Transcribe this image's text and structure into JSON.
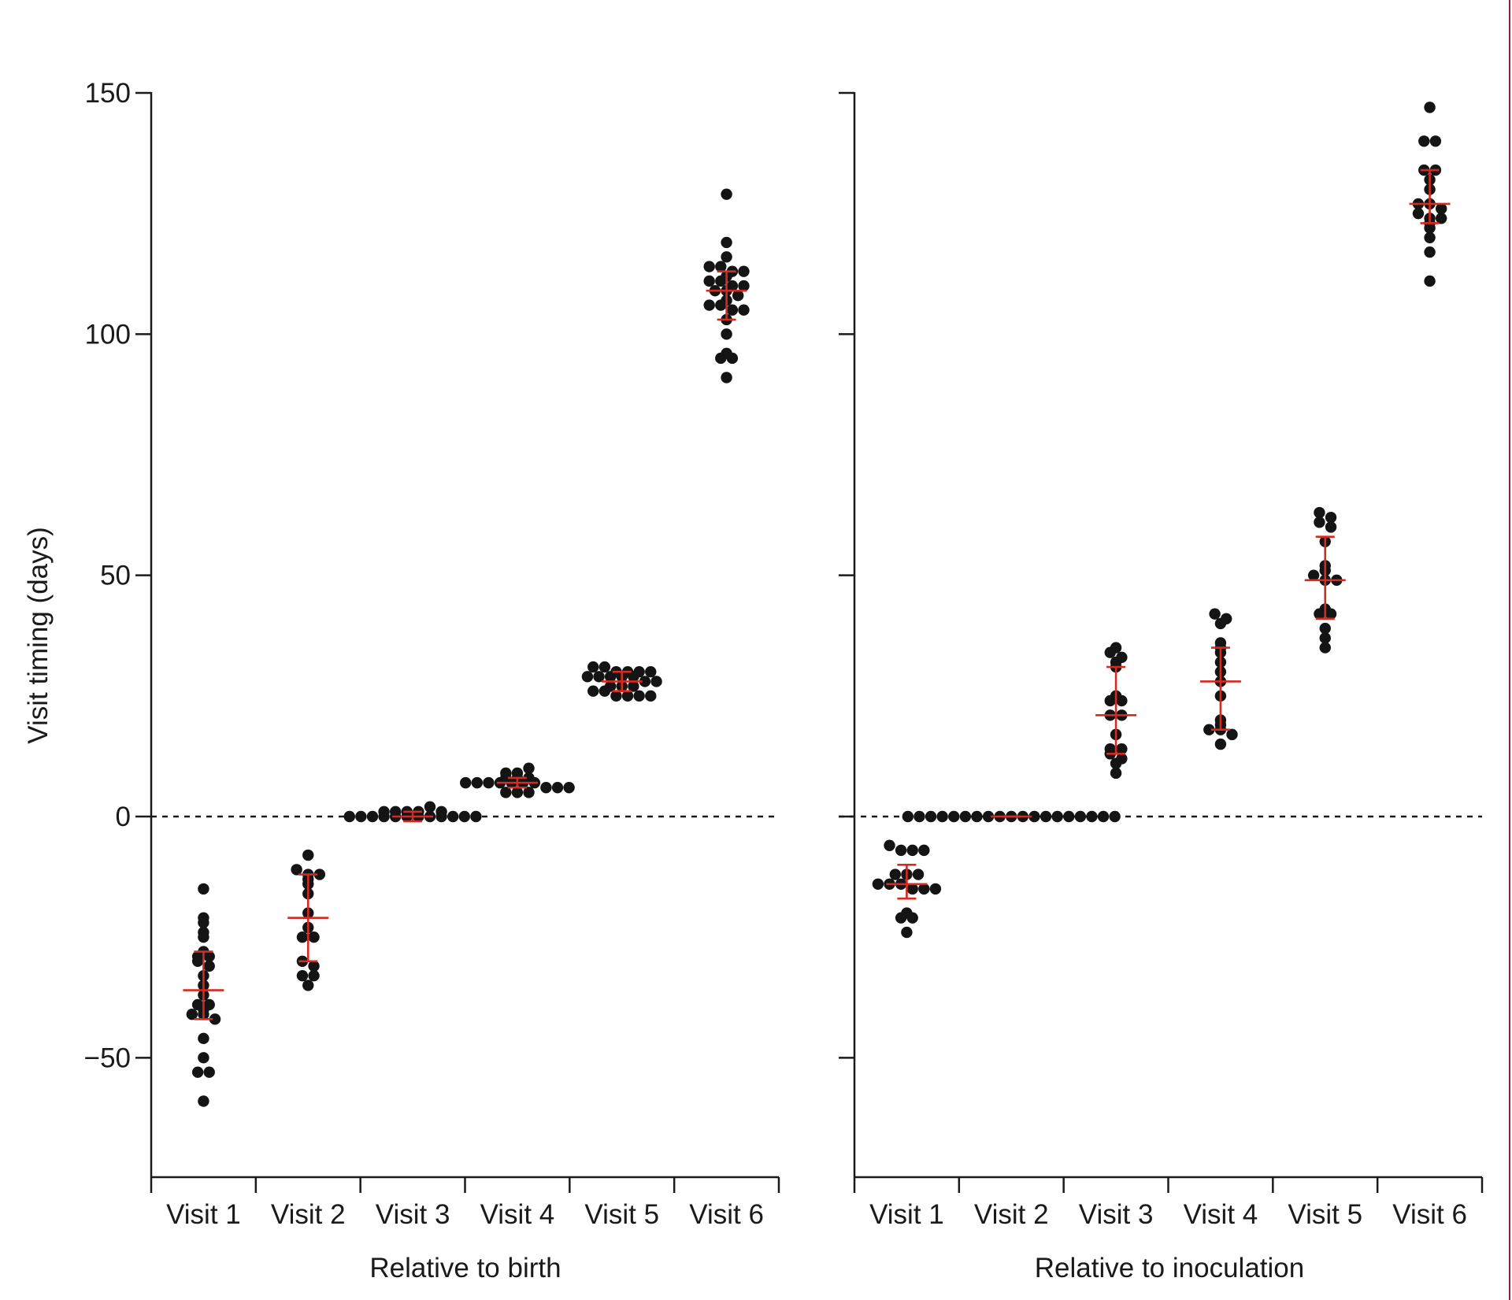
{
  "chart_data": {
    "type": "scatter",
    "ylabel": "Visit timing (days)",
    "ylim": [
      -75,
      150
    ],
    "yticks": [
      150,
      100,
      50,
      0,
      -50
    ],
    "ytick_labels": [
      "150",
      "100",
      "50",
      "0",
      "−50"
    ],
    "reference_line": {
      "y": 0,
      "style": "dashed"
    },
    "marker_color": "#141414",
    "summary_color": "#d42a22",
    "categories": [
      "Visit 1",
      "Visit 2",
      "Visit 3",
      "Visit 4",
      "Visit 5",
      "Visit 6"
    ],
    "panels": [
      {
        "xlabel": "Relative to birth",
        "groups": [
          {
            "category": "Visit 1",
            "median": -36,
            "iqr": [
              -42,
              -28
            ],
            "points": [
              -15,
              -21,
              -22,
              -24,
              -25,
              -28,
              -29,
              -29,
              -30,
              -31,
              -33,
              -35,
              -37,
              -39,
              -39,
              -40,
              -41,
              -41,
              -42,
              -46,
              -50,
              -53,
              -53,
              -59
            ]
          },
          {
            "category": "Visit 2",
            "median": -21,
            "iqr": [
              -30,
              -12
            ],
            "points": [
              -8,
              -11,
              -12,
              -12,
              -13,
              -14,
              -16,
              -20,
              -23,
              -25,
              -25,
              -30,
              -31,
              -33,
              -33,
              -35
            ]
          },
          {
            "category": "Visit 3",
            "median": 0,
            "iqr": [
              -1,
              1
            ],
            "points": [
              0,
              0,
              0,
              0,
              0,
              0,
              0,
              0,
              0,
              1,
              1,
              1,
              1,
              2,
              1,
              0,
              0,
              0
            ]
          },
          {
            "category": "Visit 4",
            "median": 7,
            "iqr": [
              6,
              8
            ],
            "points": [
              7,
              7,
              7,
              7,
              7,
              7,
              8,
              8,
              8,
              9,
              9,
              10,
              7,
              6,
              6,
              5,
              5,
              5,
              6
            ]
          },
          {
            "category": "Visit 5",
            "median": 28,
            "iqr": [
              26,
              30
            ],
            "points": [
              31,
              31,
              30,
              30,
              30,
              30,
              29,
              29,
              29,
              29,
              29,
              28,
              28,
              27,
              27,
              27,
              26,
              26,
              25,
              25,
              25,
              25
            ]
          },
          {
            "category": "Visit 6",
            "median": 109,
            "iqr": [
              103,
              113
            ],
            "points": [
              129,
              119,
              116,
              114,
              114,
              113,
              113,
              112,
              111,
              111,
              110,
              110,
              109,
              109,
              108,
              107,
              106,
              106,
              105,
              105,
              103,
              100,
              96,
              95,
              95,
              91
            ]
          }
        ]
      },
      {
        "xlabel": "Relative to inoculation",
        "groups": [
          {
            "category": "Visit 1",
            "median": -14,
            "iqr": [
              -17,
              -10
            ],
            "points": [
              -6,
              -7,
              -7,
              -7,
              -12,
              -12,
              -12,
              -14,
              -14,
              -14,
              -15,
              -15,
              -15,
              -20,
              -21,
              -21,
              -24
            ]
          },
          {
            "category": "Visit 2",
            "median": 0,
            "iqr": [
              0,
              0
            ],
            "points": [
              0,
              0,
              0,
              0,
              0,
              0,
              0,
              0,
              0,
              0,
              0,
              0,
              0,
              0,
              0,
              0,
              0,
              0,
              0
            ]
          },
          {
            "category": "Visit 3",
            "median": 21,
            "iqr": [
              13,
              31
            ],
            "points": [
              35,
              34,
              33,
              32,
              31,
              25,
              24,
              24,
              21,
              21,
              17,
              14,
              14,
              13,
              12,
              11,
              9
            ]
          },
          {
            "category": "Visit 4",
            "median": 28,
            "iqr": [
              18,
              35
            ],
            "points": [
              42,
              41,
              40,
              36,
              35,
              34,
              32,
              30,
              28,
              25,
              20,
              19,
              18,
              18,
              17,
              15
            ]
          },
          {
            "category": "Visit 5",
            "median": 49,
            "iqr": [
              41,
              58
            ],
            "points": [
              63,
              62,
              61,
              60,
              57,
              52,
              51,
              50,
              49,
              49,
              43,
              42,
              42,
              39,
              37,
              35
            ]
          },
          {
            "category": "Visit 6",
            "median": 127,
            "iqr": [
              123,
              134
            ],
            "points": [
              147,
              140,
              140,
              134,
              134,
              132,
              130,
              127,
              127,
              126,
              125,
              124,
              124,
              123,
              122,
              120,
              117,
              111
            ]
          }
        ]
      }
    ]
  }
}
